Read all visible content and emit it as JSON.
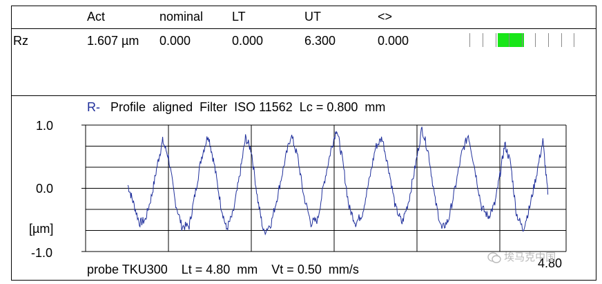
{
  "results_table": {
    "headers": [
      "Act",
      "nominal",
      "LT",
      "UT",
      "<>"
    ],
    "row": {
      "label": "Rz",
      "act": "1.607 µm",
      "nominal": "0.000",
      "lt": "0.000",
      "ut": "6.300",
      "deviation": "0.000"
    },
    "gauge_level": 0.4,
    "gauge_color": "#18e618"
  },
  "profile": {
    "title_prefix": "R-",
    "title": "Profile  aligned  Filter  ISO 11562  Lc = 0.800  mm",
    "y_unit": "[µm]",
    "x_end_label": "4.80",
    "footer": "probe TKU300    Lt = 4.80  mm    Vt = 0.50  mm/s",
    "line_color": "#1f2f9b"
  },
  "chart_data": {
    "type": "line",
    "title": "Profile  aligned  Filter  ISO 11562  Lc = 0.800  mm",
    "xlabel": "",
    "ylabel": "[µm]",
    "yticks": [
      "1.0",
      "0.0",
      "-1.0"
    ],
    "xticks_visible": [
      "4.80"
    ],
    "xlim": [
      0,
      5.8
    ],
    "ylim": [
      -1.0,
      1.0
    ],
    "grid": true,
    "series": [
      {
        "x": [
          0.51,
          0.57,
          0.65,
          0.72,
          0.8,
          0.87,
          0.93,
          1.0,
          1.08,
          1.16,
          1.25,
          1.32,
          1.4,
          1.48,
          1.55,
          1.63,
          1.7,
          1.78,
          1.86,
          1.93,
          2.0,
          2.08,
          2.15,
          2.24,
          2.32,
          2.4,
          2.48,
          2.56,
          2.63,
          2.72,
          2.8,
          2.88,
          2.96,
          3.03,
          3.1,
          3.18,
          3.26,
          3.34,
          3.42,
          3.5,
          3.58,
          3.66,
          3.74,
          3.82,
          3.9,
          3.98,
          4.06,
          4.14,
          4.22,
          4.3,
          4.38,
          4.46,
          4.54,
          4.62,
          4.7,
          4.78,
          4.86,
          4.94,
          5.0,
          5.06,
          5.13,
          5.2,
          5.28,
          5.36,
          5.44,
          5.52,
          5.58
        ],
        "y": [
          0.05,
          -0.2,
          -0.55,
          -0.5,
          -0.1,
          0.4,
          0.75,
          0.5,
          -0.2,
          -0.6,
          -0.6,
          -0.1,
          0.5,
          0.85,
          0.4,
          -0.25,
          -0.65,
          -0.4,
          0.2,
          0.8,
          0.6,
          -0.2,
          -0.7,
          -0.55,
          -0.1,
          0.4,
          0.85,
          0.5,
          -0.1,
          -0.55,
          -0.5,
          0.1,
          0.6,
          0.95,
          0.45,
          -0.3,
          -0.55,
          -0.4,
          0.1,
          0.65,
          0.8,
          0.3,
          -0.3,
          -0.55,
          -0.2,
          0.35,
          0.95,
          0.55,
          -0.2,
          -0.65,
          -0.5,
          0.0,
          0.55,
          0.85,
          0.3,
          -0.3,
          -0.45,
          -0.25,
          0.2,
          0.7,
          0.4,
          -0.4,
          -0.65,
          -0.3,
          0.2,
          0.75,
          -0.1
        ]
      }
    ]
  }
}
